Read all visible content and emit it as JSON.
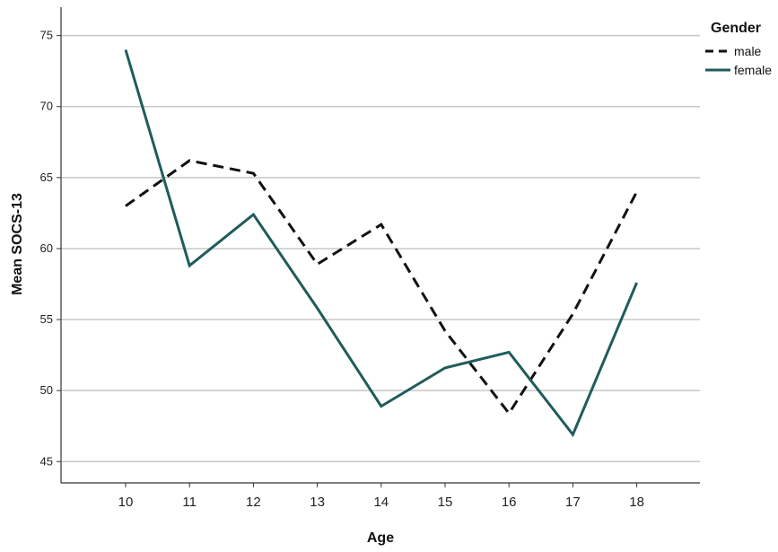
{
  "chart_data": {
    "type": "line",
    "title": "",
    "xlabel": "Age",
    "ylabel": "Mean SOCS-13",
    "x": [
      10,
      11,
      12,
      13,
      14,
      15,
      16,
      17,
      18
    ],
    "ylim": [
      43.5,
      77
    ],
    "yticks": [
      45,
      50,
      55,
      60,
      65,
      70,
      75
    ],
    "grid": "horizontal",
    "legend": {
      "title": "Gender",
      "position": "top-right"
    },
    "series": [
      {
        "name": "male",
        "style": "dashed",
        "color": "#111111",
        "values": [
          63.0,
          66.2,
          65.3,
          58.9,
          61.7,
          54.2,
          48.4,
          55.4,
          64.0
        ]
      },
      {
        "name": "female",
        "style": "solid",
        "color": "#1f5c5c",
        "values": [
          74.0,
          58.8,
          62.4,
          55.8,
          48.9,
          51.6,
          52.7,
          46.9,
          57.6
        ]
      }
    ]
  }
}
